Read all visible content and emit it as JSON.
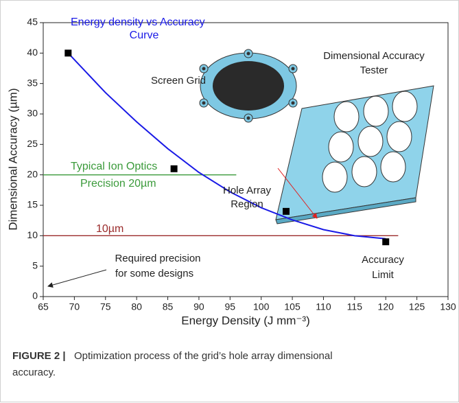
{
  "chart_data": {
    "type": "scatter",
    "x_label": "Energy Density (J mm⁻³)",
    "y_label": "Dimensional Accuracy (µm)",
    "xlim": [
      65,
      130
    ],
    "xticks": [
      65,
      70,
      75,
      80,
      85,
      90,
      95,
      100,
      105,
      110,
      115,
      120,
      125,
      130
    ],
    "ylim": [
      0,
      45
    ],
    "yticks": [
      0,
      5,
      10,
      15,
      20,
      25,
      30,
      35,
      40,
      45
    ],
    "points": {
      "x": [
        69,
        86,
        104,
        120
      ],
      "values": [
        40,
        21,
        14,
        9
      ],
      "color": "#000000"
    },
    "fit": {
      "x": [
        69,
        75,
        80,
        85,
        90,
        95,
        100,
        105,
        110,
        115,
        120
      ],
      "values": [
        40,
        33.5,
        28.7,
        24.3,
        20.4,
        17.2,
        14.6,
        12.6,
        11.0,
        10.0,
        9.5
      ],
      "color": "#1a1ae6"
    },
    "reference_lines": [
      {
        "y": 20,
        "x_range": [
          65,
          96
        ],
        "color": "#3a9a3a"
      },
      {
        "y": 10,
        "x_range": [
          65,
          122
        ],
        "color": "#9a2a2a"
      }
    ],
    "annotations": [
      {
        "text": "Energy density vs Accuracy",
        "color": "#1a1ae6"
      },
      {
        "text": "Curve",
        "color": "#1a1ae6"
      },
      {
        "text": "Screen Grid",
        "color": "#222222"
      },
      {
        "text": "Dimensional Accuracy",
        "color": "#222222"
      },
      {
        "text": "Tester",
        "color": "#222222"
      },
      {
        "text": "Hole Array",
        "color": "#222222"
      },
      {
        "text": "Region",
        "color": "#222222"
      },
      {
        "text": "Typical Ion Optics",
        "color": "#3a9a3a"
      },
      {
        "text": "Precision 20µm",
        "color": "#3a9a3a"
      },
      {
        "text": "10µm",
        "color": "#9a2a2a"
      },
      {
        "text": "Accuracy",
        "color": "#222222"
      },
      {
        "text": "Limit",
        "color": "#222222"
      },
      {
        "text": "Required precision",
        "color": "#222222"
      },
      {
        "text": "for some designs",
        "color": "#222222"
      }
    ]
  },
  "caption": {
    "label": "FIGURE 2 |",
    "text": "Optimization process of the grid’s hole array dimensional",
    "text_line2": "accuracy."
  }
}
